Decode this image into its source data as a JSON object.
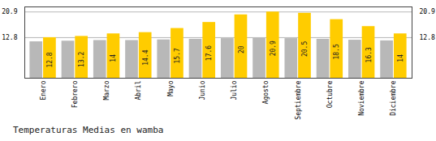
{
  "chart_data": {
    "type": "bar",
    "title": "Temperaturas Medias en wamba",
    "categories": [
      "Enero",
      "Febrero",
      "Marzo",
      "Abril",
      "Mayo",
      "Junio",
      "Julio",
      "Agosto",
      "Septiembre",
      "Octubre",
      "Noviembre",
      "Diciembre"
    ],
    "series": [
      {
        "color": "#B8B8B8",
        "values": [
          11.5,
          11.7,
          11.9,
          11.9,
          12.1,
          12.3,
          12.5,
          12.7,
          12.5,
          12.3,
          12.0,
          11.8
        ]
      },
      {
        "color": "#FFCC00",
        "values": [
          12.8,
          13.2,
          14.0,
          14.4,
          15.7,
          17.6,
          20.0,
          20.9,
          20.5,
          18.5,
          16.3,
          14.0
        ],
        "data_labels": true
      }
    ],
    "ylim": [
      0,
      22.5
    ],
    "yticks": [
      12.8,
      20.9
    ],
    "y2lim": [
      0,
      22.5
    ],
    "y2ticks": [
      12.8,
      20.9
    ],
    "grid": true
  }
}
